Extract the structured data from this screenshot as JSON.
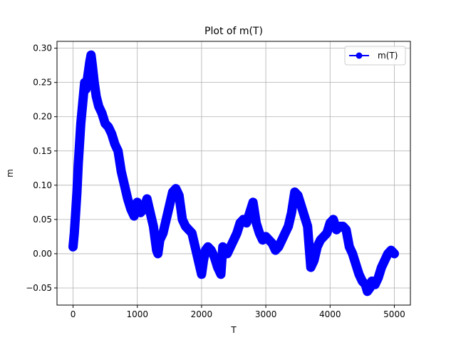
{
  "chart_data": {
    "type": "line",
    "title": "Plot of m(T)",
    "xlabel": "T",
    "ylabel": "m",
    "xlim": [
      -250,
      5250
    ],
    "ylim": [
      -0.075,
      0.31
    ],
    "xticks": [
      0,
      1000,
      2000,
      3000,
      4000,
      5000
    ],
    "xtick_labels": [
      "0",
      "1000",
      "2000",
      "3000",
      "4000",
      "5000"
    ],
    "yticks": [
      -0.05,
      0.0,
      0.05,
      0.1,
      0.15,
      0.2,
      0.25,
      0.3
    ],
    "ytick_labels": [
      "−0.05",
      "0.00",
      "0.05",
      "0.10",
      "0.15",
      "0.20",
      "0.25",
      "0.30"
    ],
    "grid": true,
    "legend_position": "upper right",
    "series": [
      {
        "name": "m(T)",
        "color": "#0000ff",
        "marker": "circle",
        "x": [
          0,
          20,
          40,
          60,
          80,
          100,
          120,
          150,
          180,
          200,
          230,
          260,
          280,
          300,
          330,
          360,
          400,
          450,
          500,
          550,
          600,
          650,
          700,
          750,
          800,
          850,
          900,
          950,
          980,
          1000,
          1050,
          1100,
          1150,
          1200,
          1250,
          1300,
          1320,
          1350,
          1400,
          1450,
          1500,
          1550,
          1600,
          1650,
          1700,
          1750,
          1800,
          1850,
          1900,
          1950,
          2000,
          2030,
          2060,
          2100,
          2150,
          2200,
          2250,
          2300,
          2330,
          2360,
          2400,
          2450,
          2500,
          2550,
          2600,
          2650,
          2700,
          2750,
          2800,
          2850,
          2900,
          2950,
          3000,
          3050,
          3100,
          3150,
          3200,
          3250,
          3300,
          3350,
          3400,
          3450,
          3500,
          3550,
          3600,
          3650,
          3700,
          3750,
          3800,
          3850,
          3900,
          3950,
          4000,
          4050,
          4100,
          4150,
          4200,
          4250,
          4300,
          4350,
          4400,
          4450,
          4500,
          4550,
          4580,
          4620,
          4650,
          4700,
          4750,
          4800,
          4850,
          4900,
          4950,
          5000
        ],
        "y": [
          0.01,
          0.03,
          0.06,
          0.09,
          0.13,
          0.16,
          0.19,
          0.22,
          0.25,
          0.24,
          0.26,
          0.28,
          0.29,
          0.275,
          0.25,
          0.23,
          0.215,
          0.205,
          0.19,
          0.185,
          0.175,
          0.16,
          0.15,
          0.12,
          0.1,
          0.08,
          0.065,
          0.055,
          0.07,
          0.075,
          0.06,
          0.065,
          0.08,
          0.06,
          0.04,
          0.005,
          0.0,
          0.02,
          0.03,
          0.05,
          0.07,
          0.09,
          0.095,
          0.085,
          0.05,
          0.04,
          0.035,
          0.03,
          0.01,
          -0.01,
          -0.03,
          -0.01,
          0.005,
          0.01,
          0.005,
          -0.005,
          -0.02,
          -0.03,
          0.01,
          0.005,
          0.0,
          0.01,
          0.02,
          0.03,
          0.045,
          0.05,
          0.045,
          0.06,
          0.075,
          0.045,
          0.03,
          0.02,
          0.025,
          0.02,
          0.015,
          0.005,
          0.01,
          0.02,
          0.03,
          0.04,
          0.06,
          0.09,
          0.085,
          0.07,
          0.055,
          0.04,
          -0.02,
          -0.01,
          0.01,
          0.02,
          0.025,
          0.03,
          0.045,
          0.05,
          0.035,
          0.04,
          0.04,
          0.035,
          0.01,
          0.0,
          -0.015,
          -0.03,
          -0.04,
          -0.045,
          -0.055,
          -0.05,
          -0.04,
          -0.045,
          -0.035,
          -0.02,
          -0.01,
          0.0,
          0.005,
          0.0
        ]
      }
    ]
  }
}
